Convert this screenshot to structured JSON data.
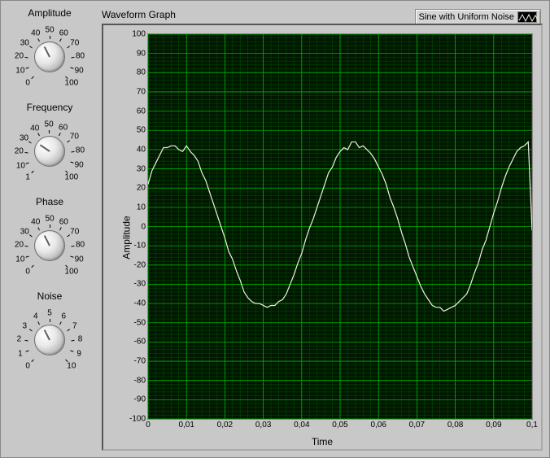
{
  "knobs": [
    {
      "label": "Amplitude",
      "min": 0,
      "max": 100,
      "value": 40,
      "ticks": [
        0,
        10,
        20,
        30,
        40,
        50,
        60,
        70,
        80,
        90,
        100
      ]
    },
    {
      "label": "Frequency",
      "min": 1,
      "max": 100,
      "value": 30,
      "ticks": [
        1,
        10,
        20,
        30,
        40,
        50,
        60,
        70,
        80,
        90,
        100
      ]
    },
    {
      "label": "Phase",
      "min": 0,
      "max": 100,
      "value": 40,
      "ticks": [
        0,
        10,
        20,
        30,
        40,
        50,
        60,
        70,
        80,
        90,
        100
      ]
    },
    {
      "label": "Noise",
      "min": 0,
      "max": 10,
      "value": 4,
      "ticks": [
        0,
        1,
        2,
        3,
        4,
        5,
        6,
        7,
        8,
        9,
        10
      ]
    }
  ],
  "graph": {
    "title": "Waveform Graph",
    "legend_label": "Sine with Uniform Noise",
    "ylabel": "Amplitude",
    "xlabel": "Time",
    "ylim": [
      -100,
      100
    ],
    "ytick_step": 10,
    "xlim": [
      0,
      0.1
    ],
    "xtick_step": 0.01,
    "decimal_sep": ",",
    "background_color": "#001800",
    "grid_major_color": "#00b000",
    "grid_minor_color": "#005000",
    "line_color": "#f0f0e0",
    "line_width": 1.2,
    "series": {
      "x_step": 0.001,
      "y": [
        22,
        29,
        33,
        37,
        41,
        41,
        42,
        42,
        40,
        39,
        42,
        39,
        37,
        34,
        28,
        24,
        18,
        12,
        6,
        0,
        -6,
        -13,
        -17,
        -23,
        -28,
        -34,
        -37,
        -39,
        -40,
        -40,
        -41,
        -42,
        -41,
        -41,
        -39,
        -38,
        -35,
        -30,
        -25,
        -19,
        -14,
        -7,
        -1,
        4,
        10,
        16,
        22,
        28,
        31,
        36,
        39,
        41,
        40,
        44,
        44,
        41,
        42,
        40,
        38,
        35,
        31,
        27,
        22,
        15,
        10,
        4,
        -3,
        -9,
        -16,
        -21,
        -26,
        -31,
        -35,
        -38,
        -41,
        -42,
        -42,
        -44,
        -43,
        -42,
        -41,
        -39,
        -37,
        -35,
        -30,
        -24,
        -19,
        -12,
        -7,
        0,
        7,
        13,
        20,
        26,
        31,
        35,
        39,
        41,
        42,
        44,
        -2
      ]
    }
  }
}
